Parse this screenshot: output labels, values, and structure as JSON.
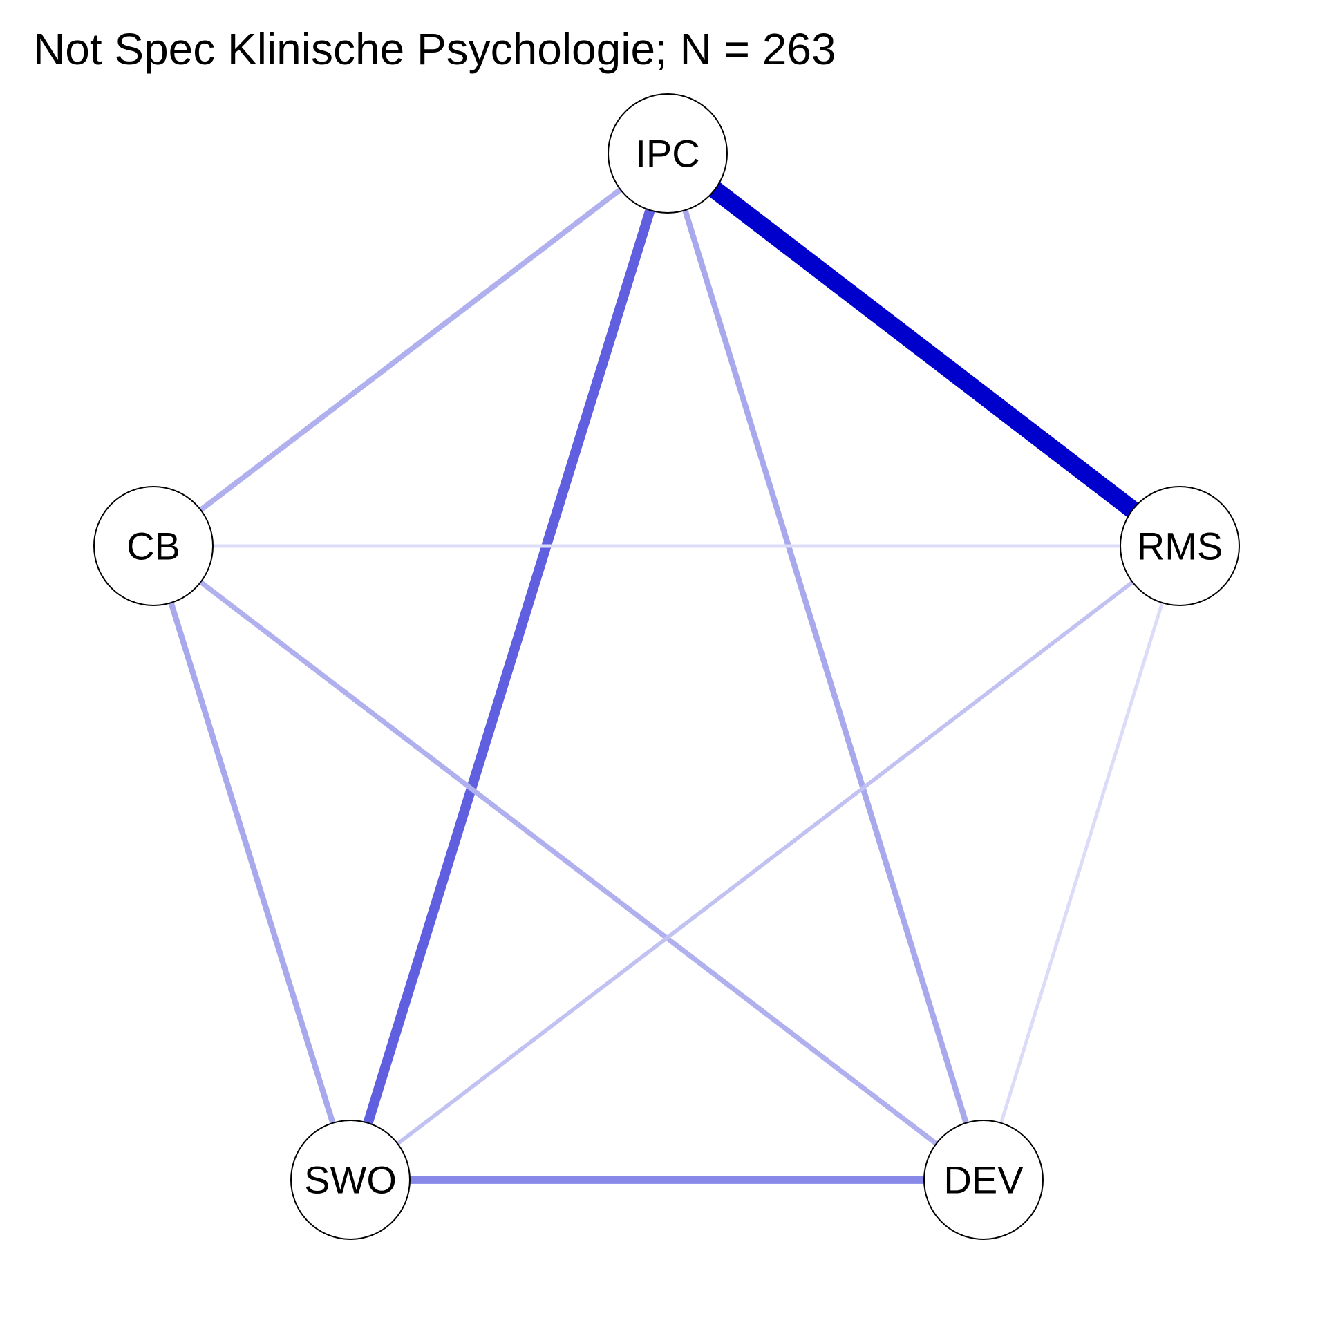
{
  "title": "Not Spec Klinische Psychologie; N = 263",
  "nodes": [
    {
      "id": "IPC",
      "label": "IPC"
    },
    {
      "id": "RMS",
      "label": "RMS"
    },
    {
      "id": "DEV",
      "label": "DEV"
    },
    {
      "id": "SWO",
      "label": "SWO"
    },
    {
      "id": "CB",
      "label": "CB"
    }
  ],
  "edges": [
    {
      "from": "IPC",
      "to": "RMS",
      "weight": 1.0,
      "color": "#0000CC"
    },
    {
      "from": "IPC",
      "to": "SWO",
      "weight": 0.55,
      "color": "#5F5FE0"
    },
    {
      "from": "IPC",
      "to": "CB",
      "weight": 0.3,
      "color": "#B0B0EE"
    },
    {
      "from": "IPC",
      "to": "DEV",
      "weight": 0.32,
      "color": "#A8A8EC"
    },
    {
      "from": "SWO",
      "to": "DEV",
      "weight": 0.45,
      "color": "#8888E8"
    },
    {
      "from": "CB",
      "to": "SWO",
      "weight": 0.32,
      "color": "#A8A8EC"
    },
    {
      "from": "CB",
      "to": "DEV",
      "weight": 0.28,
      "color": "#B0B0EE"
    },
    {
      "from": "RMS",
      "to": "SWO",
      "weight": 0.22,
      "color": "#C2C2F2"
    },
    {
      "from": "CB",
      "to": "RMS",
      "weight": 0.15,
      "color": "#DCDCF8"
    },
    {
      "from": "RMS",
      "to": "DEV",
      "weight": 0.13,
      "color": "#DCDCF8"
    }
  ]
}
